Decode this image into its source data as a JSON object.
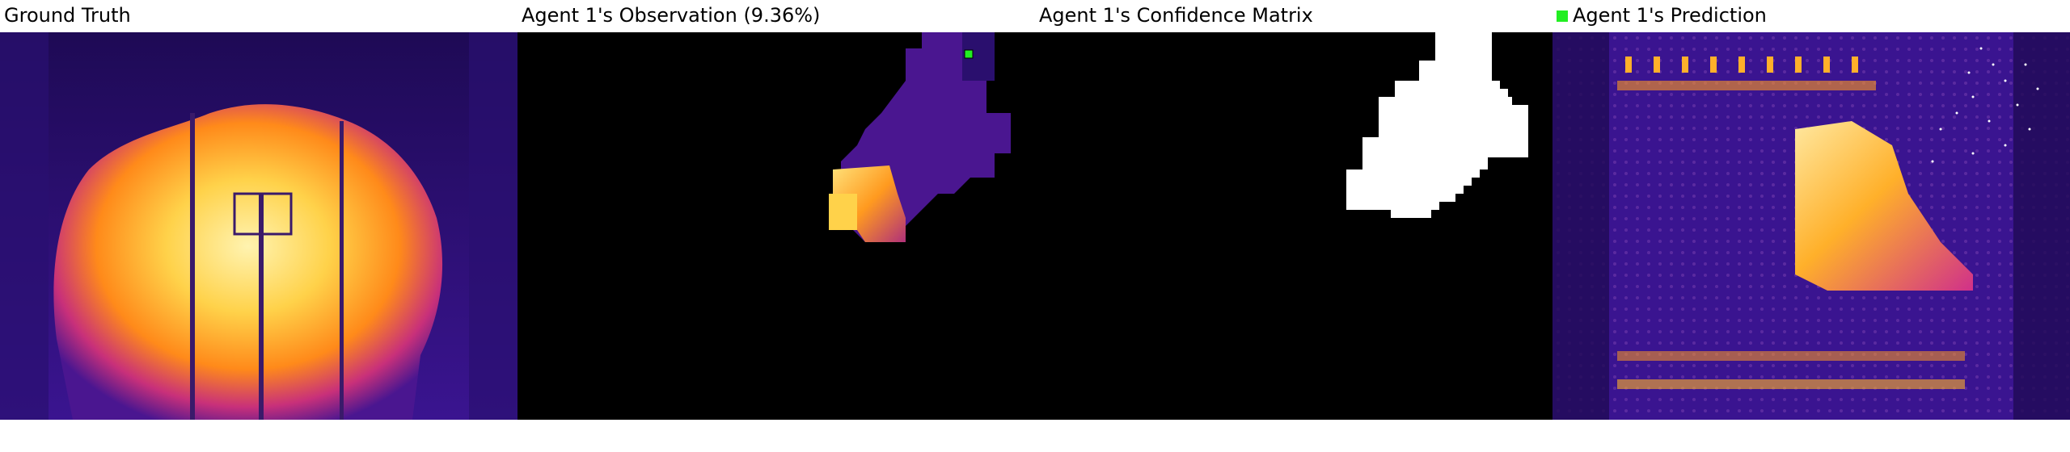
{
  "panels": [
    {
      "title": "Ground Truth"
    },
    {
      "title": "Agent 1's Observation (9.36%)"
    },
    {
      "title": "Agent 1's Confidence Matrix"
    },
    {
      "title": "Agent 1's Prediction"
    }
  ],
  "legend": {
    "agent_color": "#22ee22"
  },
  "colors": {
    "background_dark": "#2a0f6e",
    "fire_hot": "#ffe27a",
    "fire_mid": "#ff9a1f",
    "fire_low": "#c8307a",
    "observation_bg": "#000000",
    "confidence_known": "#ffffff"
  }
}
